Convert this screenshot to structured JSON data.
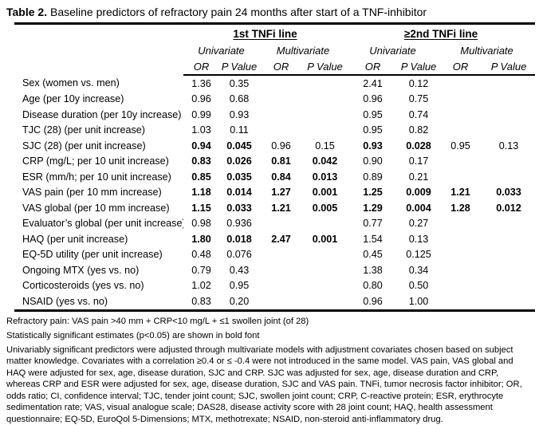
{
  "title": {
    "prefix": "Table 2.",
    "text": " Baseline predictors of refractory pain 24 months after start of a TNF-inhibitor"
  },
  "table": {
    "group_headers": [
      "1st TNFi line",
      "≥2nd TNFi line"
    ],
    "model_headers": [
      "Univariate",
      "Multivariate",
      "Univariate",
      "Multivariate"
    ],
    "stat_headers": [
      "OR",
      "P Value",
      "OR",
      "P Value",
      "OR",
      "P Value",
      "OR",
      "P Value"
    ],
    "rows": [
      {
        "label": "Sex (women vs. men)",
        "values": [
          "1.36",
          "0.35",
          "",
          "",
          "2.41",
          "0.12",
          "",
          ""
        ],
        "bold": [
          0,
          0,
          0,
          0,
          0,
          0,
          0,
          0
        ]
      },
      {
        "label": "Age (per 10y increase)",
        "values": [
          "0.96",
          "0.68",
          "",
          "",
          "0.96",
          "0.75",
          "",
          ""
        ],
        "bold": [
          0,
          0,
          0,
          0,
          0,
          0,
          0,
          0
        ]
      },
      {
        "label": "Disease duration (per 10y increase)",
        "values": [
          "0.99",
          "0.93",
          "",
          "",
          "0.95",
          "0.74",
          "",
          ""
        ],
        "bold": [
          0,
          0,
          0,
          0,
          0,
          0,
          0,
          0
        ]
      },
      {
        "label": "TJC (28) (per unit increase)",
        "values": [
          "1.03",
          "0.11",
          "",
          "",
          "0.95",
          "0.82",
          "",
          ""
        ],
        "bold": [
          0,
          0,
          0,
          0,
          0,
          0,
          0,
          0
        ]
      },
      {
        "label": "SJC (28) (per unit increase)",
        "values": [
          "0.94",
          "0.045",
          "0.96",
          "0.15",
          "0.93",
          "0.028",
          "0.95",
          "0.13"
        ],
        "bold": [
          1,
          1,
          0,
          0,
          1,
          1,
          0,
          0
        ]
      },
      {
        "label": "CRP (mg/L; per 10 unit increase)",
        "values": [
          "0.83",
          "0.026",
          "0.81",
          "0.042",
          "0.90",
          "0.17",
          "",
          ""
        ],
        "bold": [
          1,
          1,
          1,
          1,
          0,
          0,
          0,
          0
        ]
      },
      {
        "label": "ESR (mm/h; per 10 unit increase)",
        "values": [
          "0.85",
          "0.035",
          "0.84",
          "0.013",
          "0.89",
          "0.21",
          "",
          ""
        ],
        "bold": [
          1,
          1,
          1,
          1,
          0,
          0,
          0,
          0
        ]
      },
      {
        "label": "VAS pain (per 10 mm increase)",
        "values": [
          "1.18",
          "0.014",
          "1.27",
          "0.001",
          "1.25",
          "0.009",
          "1.21",
          "0.033"
        ],
        "bold": [
          1,
          1,
          1,
          1,
          1,
          1,
          1,
          1
        ]
      },
      {
        "label": "VAS global (per 10 mm increase)",
        "values": [
          "1.15",
          "0.033",
          "1.21",
          "0.005",
          "1.29",
          "0.004",
          "1.28",
          "0.012"
        ],
        "bold": [
          1,
          1,
          1,
          1,
          1,
          1,
          1,
          1
        ]
      },
      {
        "label": "Evaluator’s global (per unit increase)",
        "values": [
          "0.98",
          "0.936",
          "",
          "",
          "0.77",
          "0.27",
          "",
          ""
        ],
        "bold": [
          0,
          0,
          0,
          0,
          0,
          0,
          0,
          0
        ]
      },
      {
        "label": "HAQ (per unit increase)",
        "values": [
          "1.80",
          "0.018",
          "2.47",
          "0.001",
          "1.54",
          "0.13",
          "",
          ""
        ],
        "bold": [
          1,
          1,
          1,
          1,
          0,
          0,
          0,
          0
        ]
      },
      {
        "label": "EQ-5D utility (per unit increase)",
        "values": [
          "0.48",
          "0.076",
          "",
          "",
          "0.45",
          "0.125",
          "",
          ""
        ],
        "bold": [
          0,
          0,
          0,
          0,
          0,
          0,
          0,
          0
        ]
      },
      {
        "label": "Ongoing MTX (yes vs. no)",
        "values": [
          "0.79",
          "0.43",
          "",
          "",
          "1.38",
          "0.34",
          "",
          ""
        ],
        "bold": [
          0,
          0,
          0,
          0,
          0,
          0,
          0,
          0
        ]
      },
      {
        "label": "Corticosteroids (yes vs. no)",
        "values": [
          "1.02",
          "0.95",
          "",
          "",
          "0.80",
          "0.50",
          "",
          ""
        ],
        "bold": [
          0,
          0,
          0,
          0,
          0,
          0,
          0,
          0
        ]
      },
      {
        "label": "NSAID (yes vs. no)",
        "values": [
          "0.83",
          "0.20",
          "",
          "",
          "0.96",
          "1.00",
          "",
          ""
        ],
        "bold": [
          0,
          0,
          0,
          0,
          0,
          0,
          0,
          0
        ]
      }
    ]
  },
  "footnotes": {
    "definition": "Refractory pain: VAS pain >40 mm + CRP<10 mg/L + ≤1 swollen joint (of 28)",
    "significance": "Statistically significant estimates (p<0.05) are shown in bold font",
    "paragraph": "Univariably significant predictors were adjusted through multivariate models with adjustment covariates chosen based on subject matter knowledge. Covariates with a correlation ≥0.4 or ≤ -0.4 were not introduced in the same model. VAS pain, VAS global and HAQ were adjusted for sex, age, disease duration, SJC and CRP. SJC was adjusted for sex, age, disease duration and CRP, whereas CRP and ESR were adjusted for sex, age, disease duration, SJC and VAS pain. TNFi, tumor necrosis factor inhibitor; OR, odds ratio; CI, confidence interval; TJC, tender joint count; SJC, swollen joint count; CRP, C-reactive protein; ESR, erythrocyte sedimentation rate; VAS, visual analogue scale; DAS28, disease activity score with 28 joint count; HAQ, health assessment questionnaire; EQ-5D, EuroQol 5-Dimensions; MTX, methotrexate; NSAID, non-steroid anti-inflammatory drug."
  },
  "colors": {
    "text": "#000000",
    "background": "#ffffff",
    "rule": "#000000"
  }
}
